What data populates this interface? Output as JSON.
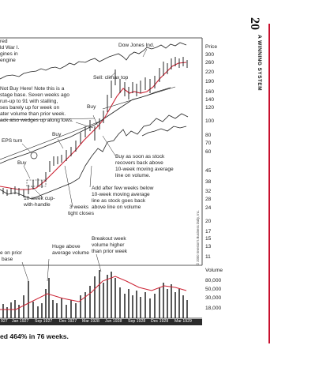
{
  "page_number": "20",
  "chapter_title": "A WINNING SYSTEM",
  "copyright": "© 2000 Investor's Business Daily, Inc.",
  "caption": "ed 464% in 76 weeks.",
  "chart": {
    "dow_label": "Dow Jones Ind.",
    "price_axis_title": "Price",
    "price_ticks": [
      "300",
      "260",
      "220",
      "190",
      "160",
      "140",
      "120",
      "100",
      "80",
      "70",
      "60",
      "45",
      "38",
      "32",
      "28",
      "24",
      "20",
      "17",
      "15",
      "13",
      "11"
    ],
    "volume_axis_title": "Volume",
    "volume_ticks": [
      "80,000",
      "50,000",
      "30,000",
      "18,000"
    ],
    "date_labels": [
      "927",
      "Jan 1927",
      "Sep 1927",
      "Dec 1927",
      "Mar 1928",
      "Jun 1928",
      "Sep 1928",
      "Dec 1928",
      "Mar 1929"
    ],
    "annotations": {
      "top_left": [
        "red",
        "ld War I.",
        "gines in",
        "engine"
      ],
      "sell_climax": "Sell: climax top",
      "not_buy": [
        "Not Buy Here! Note this is a",
        "stage base. Seven weeks ago",
        "run-up to 91 with stalling,",
        "ses barely up for week on",
        "ater volume than prior week.",
        "ack also wedges up along lows."
      ],
      "buy_upper": "Buy",
      "buy_middle": "Buy",
      "buy_lower": "Buy",
      "eps_turn": "EPS turn",
      "cup_handle": [
        "10-week cup-",
        "with-handle"
      ],
      "tight_closes": [
        "3 weeks",
        "tight closes"
      ],
      "recovers": [
        "Buy as soon as stock",
        "recovers back above",
        "10-week moving average",
        "line on volume."
      ],
      "add_after": [
        "Add after few weeks below",
        "10-week moving average",
        "line as stock goes back",
        "above line on volume"
      ],
      "huge_volume": [
        "Huge above",
        "average volume"
      ],
      "prior_base": [
        "e on prior",
        "base"
      ],
      "breakout": [
        "Breakout week",
        "volume higher",
        "than prior week"
      ]
    }
  },
  "colors": {
    "accent": "#c8102e",
    "moving_average": "#cc2233",
    "volume_panel_border": "#333333"
  }
}
